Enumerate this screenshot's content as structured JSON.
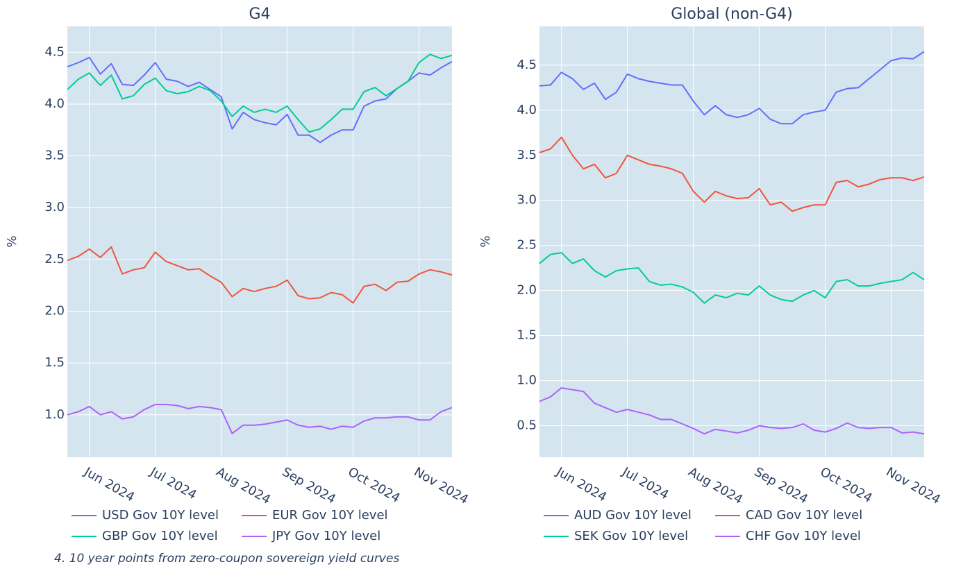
{
  "chart_data": [
    {
      "type": "line",
      "title": "G4",
      "y_label": "%",
      "categories": [
        null,
        null,
        "Jun 2024",
        null,
        null,
        null,
        null,
        null,
        "Jul 2024",
        null,
        null,
        null,
        null,
        null,
        "Aug 2024",
        null,
        null,
        null,
        null,
        null,
        "Sep 2024",
        null,
        null,
        null,
        null,
        null,
        "Oct 2024",
        null,
        null,
        null,
        null,
        null,
        "Nov 2024",
        null,
        null,
        null
      ],
      "ylim": [
        0.59,
        4.75
      ],
      "yticks": [
        {
          "value": 1,
          "label": "1.0"
        },
        1.5,
        {
          "value": 2,
          "label": "2.0"
        },
        2.5,
        {
          "value": 3,
          "label": "3.0"
        },
        3.5,
        {
          "value": 4,
          "label": "4.0"
        },
        4.5
      ],
      "grid": true,
      "background": "#d5e5f0",
      "series": [
        {
          "name": "USD Gov 10Y level",
          "color": "#636efa",
          "values": [
            4.36,
            4.4,
            4.45,
            4.29,
            4.39,
            4.19,
            4.18,
            4.28,
            4.4,
            4.24,
            4.22,
            4.17,
            4.21,
            4.14,
            4.07,
            3.76,
            3.92,
            3.85,
            3.82,
            3.8,
            3.9,
            3.7,
            3.7,
            3.63,
            3.7,
            3.75,
            3.75,
            3.98,
            4.03,
            4.05,
            4.15,
            4.22,
            4.3,
            4.28,
            4.35,
            4.41
          ]
        },
        {
          "name": "EUR Gov 10Y level",
          "color": "#ef553b",
          "values": [
            2.49,
            2.53,
            2.6,
            2.52,
            2.62,
            2.36,
            2.4,
            2.42,
            2.57,
            2.48,
            2.44,
            2.4,
            2.41,
            2.34,
            2.28,
            2.14,
            2.22,
            2.19,
            2.22,
            2.24,
            2.3,
            2.15,
            2.12,
            2.13,
            2.18,
            2.16,
            2.08,
            2.24,
            2.26,
            2.2,
            2.28,
            2.29,
            2.36,
            2.4,
            2.38,
            2.35
          ]
        },
        {
          "name": "GBP Gov 10Y level",
          "color": "#00cc96",
          "values": [
            4.14,
            4.24,
            4.3,
            4.18,
            4.28,
            4.05,
            4.08,
            4.19,
            4.25,
            4.13,
            4.1,
            4.12,
            4.17,
            4.13,
            4.03,
            3.88,
            3.98,
            3.92,
            3.95,
            3.92,
            3.98,
            3.85,
            3.73,
            3.76,
            3.85,
            3.95,
            3.95,
            4.12,
            4.16,
            4.08,
            4.15,
            4.22,
            4.4,
            4.48,
            4.44,
            4.47
          ]
        },
        {
          "name": "JPY Gov 10Y level",
          "color": "#ab63fa",
          "values": [
            1.0,
            1.03,
            1.08,
            1.0,
            1.03,
            0.96,
            0.98,
            1.05,
            1.1,
            1.1,
            1.09,
            1.06,
            1.08,
            1.07,
            1.05,
            0.82,
            0.9,
            0.9,
            0.91,
            0.93,
            0.95,
            0.9,
            0.88,
            0.89,
            0.86,
            0.89,
            0.88,
            0.94,
            0.97,
            0.97,
            0.98,
            0.98,
            0.95,
            0.95,
            1.03,
            1.07
          ]
        }
      ]
    },
    {
      "type": "line",
      "title": "Global (non-G4)",
      "y_label": "%",
      "categories": [
        null,
        null,
        "Jun 2024",
        null,
        null,
        null,
        null,
        null,
        "Jul 2024",
        null,
        null,
        null,
        null,
        null,
        "Aug 2024",
        null,
        null,
        null,
        null,
        null,
        "Sep 2024",
        null,
        null,
        null,
        null,
        null,
        "Oct 2024",
        null,
        null,
        null,
        null,
        null,
        "Nov 2024",
        null,
        null,
        null
      ],
      "ylim": [
        0.15,
        4.93
      ],
      "yticks": [
        0.5,
        {
          "value": 1,
          "label": "1.0"
        },
        1.5,
        {
          "value": 2,
          "label": "2.0"
        },
        2.5,
        {
          "value": 3,
          "label": "3.0"
        },
        3.5,
        {
          "value": 4,
          "label": "4.0"
        },
        4.5
      ],
      "grid": true,
      "background": "#d5e5f0",
      "series": [
        {
          "name": "AUD Gov 10Y level",
          "color": "#636efa",
          "values": [
            4.27,
            4.28,
            4.42,
            4.35,
            4.23,
            4.3,
            4.12,
            4.2,
            4.4,
            4.35,
            4.32,
            4.3,
            4.28,
            4.28,
            4.1,
            3.95,
            4.05,
            3.95,
            3.92,
            3.95,
            4.02,
            3.9,
            3.85,
            3.85,
            3.95,
            3.98,
            4.0,
            4.2,
            4.24,
            4.25,
            4.35,
            4.45,
            4.55,
            4.58,
            4.57,
            4.65
          ]
        },
        {
          "name": "CAD Gov 10Y level",
          "color": "#ef553b",
          "values": [
            3.53,
            3.57,
            3.7,
            3.5,
            3.35,
            3.4,
            3.25,
            3.3,
            3.5,
            3.45,
            3.4,
            3.38,
            3.35,
            3.3,
            3.1,
            2.98,
            3.1,
            3.05,
            3.02,
            3.03,
            3.13,
            2.95,
            2.98,
            2.88,
            2.92,
            2.95,
            2.95,
            3.2,
            3.22,
            3.15,
            3.18,
            3.23,
            3.25,
            3.25,
            3.22,
            3.26
          ]
        },
        {
          "name": "SEK Gov 10Y level",
          "color": "#00cc96",
          "values": [
            2.3,
            2.4,
            2.42,
            2.3,
            2.35,
            2.22,
            2.15,
            2.22,
            2.24,
            2.25,
            2.1,
            2.06,
            2.07,
            2.04,
            1.98,
            1.86,
            1.95,
            1.92,
            1.97,
            1.95,
            2.05,
            1.95,
            1.9,
            1.88,
            1.95,
            2.0,
            1.92,
            2.1,
            2.12,
            2.05,
            2.05,
            2.08,
            2.1,
            2.12,
            2.2,
            2.12
          ]
        },
        {
          "name": "CHF Gov 10Y level",
          "color": "#ab63fa",
          "values": [
            0.77,
            0.82,
            0.92,
            0.9,
            0.88,
            0.75,
            0.7,
            0.65,
            0.68,
            0.65,
            0.62,
            0.57,
            0.57,
            0.52,
            0.47,
            0.41,
            0.46,
            0.44,
            0.42,
            0.45,
            0.5,
            0.48,
            0.47,
            0.48,
            0.52,
            0.45,
            0.43,
            0.47,
            0.53,
            0.48,
            0.47,
            0.48,
            0.48,
            0.42,
            0.43,
            0.41
          ]
        }
      ]
    }
  ],
  "caption": "4. 10 year points from zero-coupon sovereign yield curves"
}
